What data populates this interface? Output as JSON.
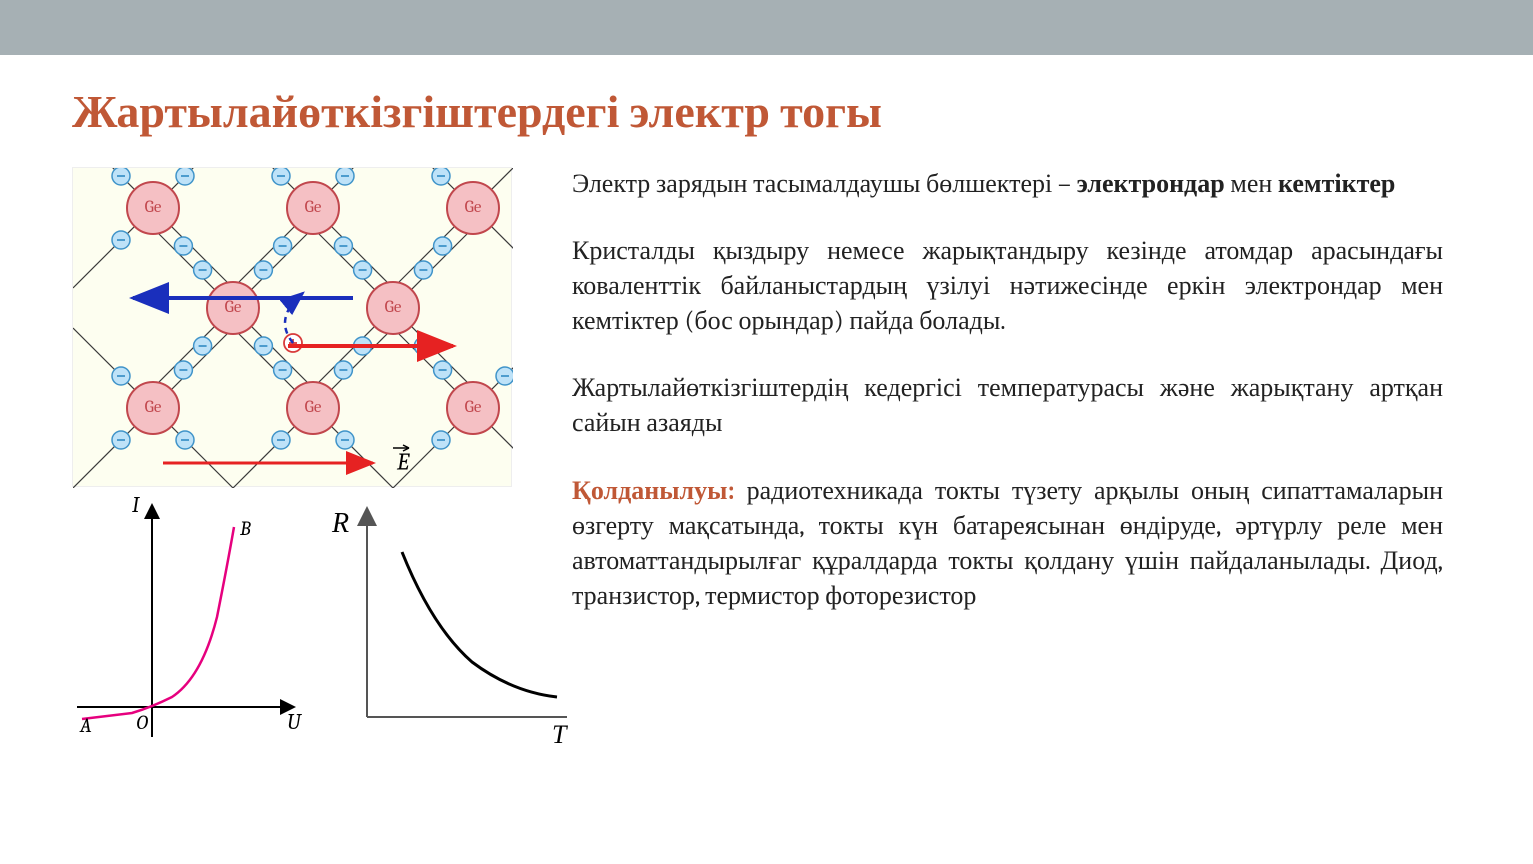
{
  "title": "Жартылайөткізгіштердегі электр тогы",
  "para1_a": "Электр зарядын тасымалдаушы бөлшектері – ",
  "para1_b": "электрондар",
  "para1_c": " мен ",
  "para1_d": "кемтіктер",
  "para2": "Кристалды қыздыру немесе жарықтандыру кезінде атомдар арасындағы коваленттік байланыстардың үзілуі нәтижесінде еркін электрондар мен кемтіктер (бос орындар) пайда болады.",
  "para3": "Жартылайөткізгіштердің кедергісі температурасы және жарықтану артқан сайын азаяды",
  "para4_label": "Қолданылуы:",
  "para4_text": " радиотехникада токты түзету арқылы оның сипаттамаларын өзгерту мақсатында, токты күн батареясынан өндіруде, әртүрлу реле мен автоматтандырылғаг құралдарда токты қолдану үшін пайдаланылады. Диод, транзистор, термистор фоторезистор",
  "lattice": {
    "ge_label": "Ge",
    "e_field_label": "E",
    "atom_color": "#f5c0c4",
    "atom_stroke": "#c1474d",
    "electron_fill": "#bee2f8",
    "electron_stroke": "#4094c9",
    "hole_stroke": "#d83a3a",
    "bond_color": "#3a3a3a",
    "arrow_blue": "#1a2fbc",
    "arrow_red": "#e62222",
    "bg": "#fdfef0"
  },
  "graph_iv": {
    "axis_y": "I",
    "axis_x": "U",
    "point_a": "A",
    "point_b": "B",
    "origin": "O",
    "curve_color": "#e6007e",
    "axis_color": "#000000"
  },
  "graph_rt": {
    "axis_y": "R",
    "axis_x": "T",
    "curve_color": "#000000",
    "axis_color": "#555555"
  }
}
